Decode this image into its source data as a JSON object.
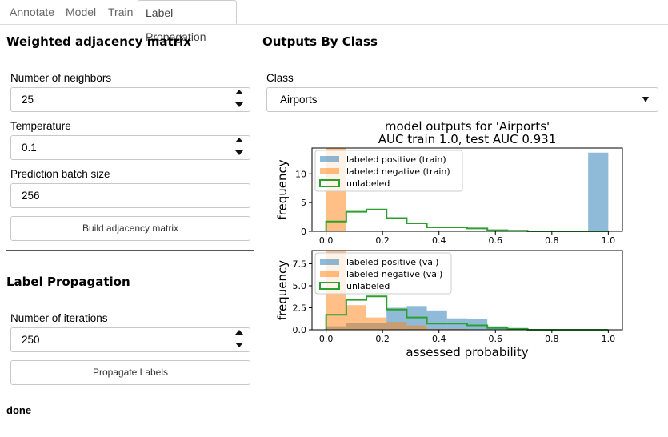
{
  "tabs": [
    "Annotate",
    "Model",
    "Train",
    "Label Propagation"
  ],
  "left": {
    "adjacency_heading": "Weighted adjacency matrix",
    "neighbors_label": "Number of neighbors",
    "neighbors_value": "25",
    "temperature_label": "Temperature",
    "temperature_value": "0.1",
    "batch_label": "Prediction batch size",
    "batch_value": "256",
    "build_button": "Build adjacency matrix",
    "propagation_heading": "Label Propagation",
    "iterations_label": "Number of iterations",
    "iterations_value": "250",
    "propagate_button": "Propagate Labels",
    "status": "done"
  },
  "right": {
    "heading": "Outputs By Class",
    "class_label": "Class",
    "class_value": "Airports"
  },
  "chart_data": {
    "type": "histogram",
    "title_line1": "model outputs for 'Airports'",
    "title_line2": "AUC train 1.0, test AUC 0.931",
    "colors": {
      "positive": "#1f77b4",
      "negative": "#ff7f0e",
      "unlabeled": "#2ca02c"
    },
    "bins": [
      0.0,
      0.07142857,
      0.14285714,
      0.21428571,
      0.28571429,
      0.35714286,
      0.42857143,
      0.5,
      0.57142857,
      0.64285714,
      0.71428571,
      0.78571429,
      0.85714286,
      0.92857143,
      1.0
    ],
    "panels": [
      {
        "ylabel": "frequency",
        "xlabel": "",
        "ylim": [
          0,
          14.5
        ],
        "yticks": [
          0,
          5,
          10
        ],
        "legend_position": "upper-left",
        "legend": [
          "labeled positive (train)",
          "labeled negative (train)",
          "unlabeled"
        ],
        "positive": [
          0,
          0,
          0,
          0,
          0,
          0,
          0,
          0,
          0,
          0,
          0,
          0,
          0,
          13.7
        ],
        "negative": [
          14.5,
          0,
          0,
          0,
          0,
          0,
          0,
          0,
          0,
          0,
          0,
          0,
          0,
          0
        ],
        "unlabeled": [
          1.7,
          3.4,
          3.8,
          2.3,
          1.4,
          0.7,
          0.7,
          0.5,
          0.2,
          0.1,
          0,
          0,
          0,
          0
        ]
      },
      {
        "ylabel": "frequency",
        "xlabel": "assessed probability",
        "ylim": [
          0,
          9
        ],
        "yticks": [
          0.0,
          2.5,
          5.0,
          7.5
        ],
        "legend_position": "upper-left",
        "legend": [
          "labeled positive (val)",
          "labeled negative (val)",
          "unlabeled"
        ],
        "positive": [
          0.4,
          0.8,
          0.8,
          2.5,
          2.7,
          2.2,
          1.3,
          1.2,
          0.4,
          0.2,
          0,
          0,
          0,
          0
        ],
        "negative": [
          9.0,
          2.8,
          1.4,
          0.9,
          0.5,
          0.1,
          0.1,
          0,
          0,
          0,
          0,
          0,
          0,
          0
        ],
        "unlabeled": [
          1.7,
          3.4,
          3.8,
          2.3,
          1.4,
          0.7,
          0.7,
          0.5,
          0.2,
          0.1,
          0,
          0,
          0,
          0
        ]
      }
    ],
    "xticks": [
      "0.0",
      "0.2",
      "0.4",
      "0.6",
      "0.8",
      "1.0"
    ]
  }
}
